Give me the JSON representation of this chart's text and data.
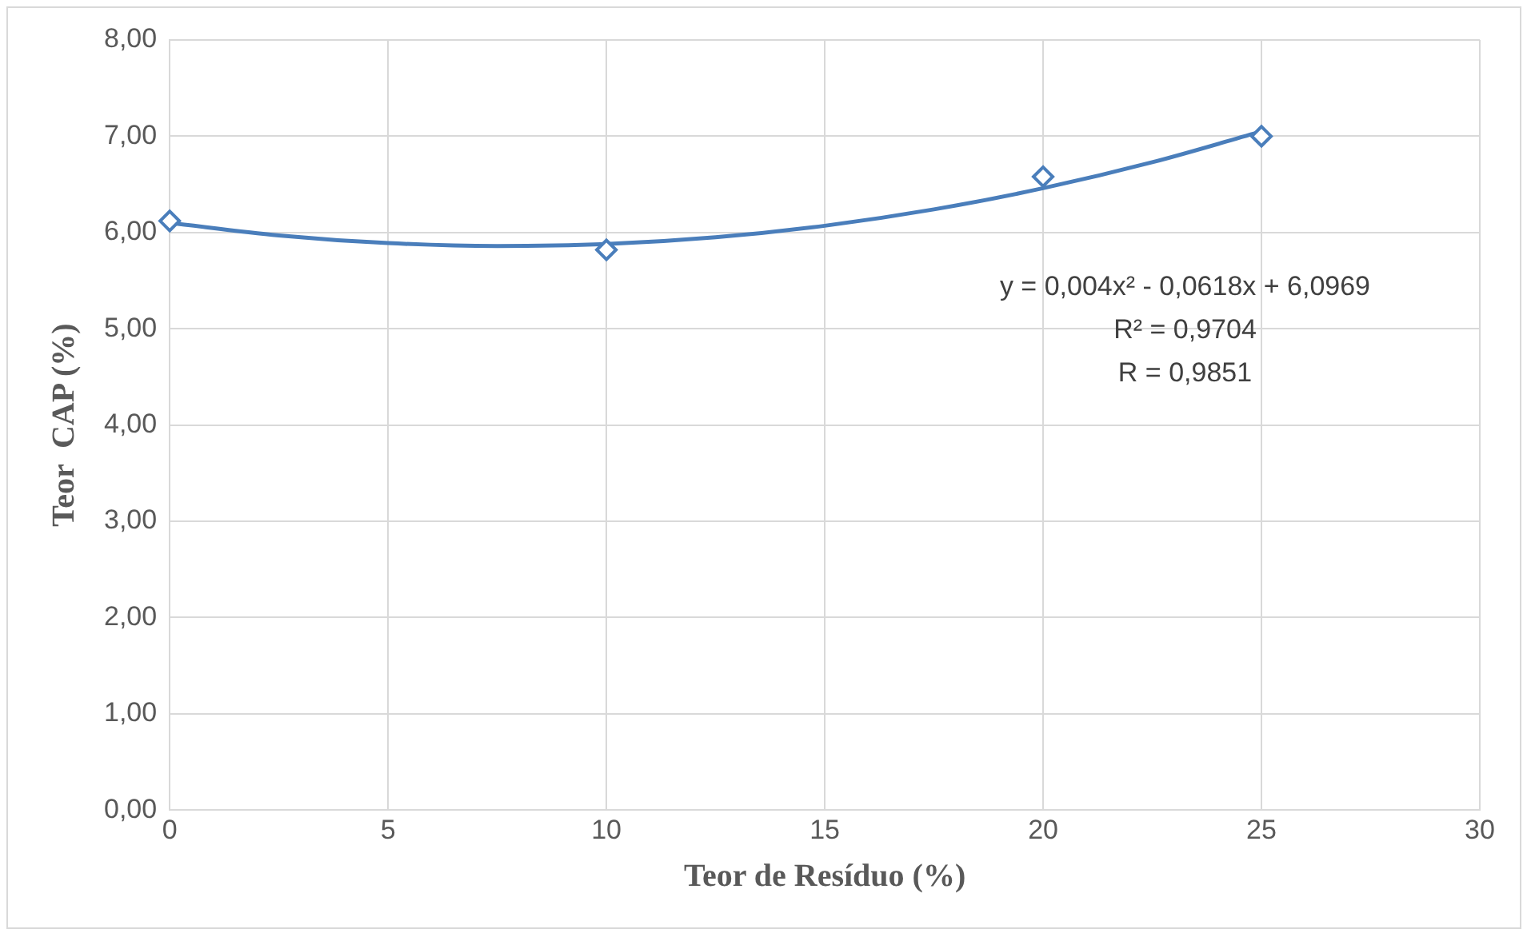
{
  "chart_data": {
    "type": "scatter",
    "xlabel": "Teor de Resíduo (%)",
    "ylabel": "Teor  CAP (%)",
    "xlim": [
      0,
      30
    ],
    "xticks": [
      0,
      5,
      10,
      15,
      20,
      25,
      30
    ],
    "ylim": [
      0,
      8
    ],
    "yticks": [
      {
        "value": 0,
        "label": "0,00"
      },
      {
        "value": 1,
        "label": "1,00"
      },
      {
        "value": 2,
        "label": "2,00"
      },
      {
        "value": 3,
        "label": "3,00"
      },
      {
        "value": 4,
        "label": "4,00"
      },
      {
        "value": 5,
        "label": "5,00"
      },
      {
        "value": 6,
        "label": "6,00"
      },
      {
        "value": 7,
        "label": "7,00"
      },
      {
        "value": 8,
        "label": "8,00"
      }
    ],
    "grid": true,
    "legend": false,
    "series": [
      {
        "type": "scatter",
        "color": "#4a7ebb",
        "marker": "diamond",
        "x": [
          0,
          10,
          20,
          25
        ],
        "values": [
          6.12,
          5.82,
          6.58,
          7.0
        ]
      },
      {
        "type": "line",
        "color": "#4a7ebb",
        "marker": "none",
        "line_style": "solid",
        "x": [
          0,
          2.5,
          5,
          7.5,
          10,
          12.5,
          15,
          17.5,
          20,
          22.5,
          25
        ],
        "values": [
          6.1,
          5.97,
          5.89,
          5.86,
          5.88,
          5.95,
          6.07,
          6.24,
          6.46,
          6.73,
          7.05
        ]
      }
    ],
    "annotations": [
      "y = 0,004x² - 0,0618x + 6,0969",
      "R² = 0,9704",
      "R = 0,9851"
    ]
  }
}
